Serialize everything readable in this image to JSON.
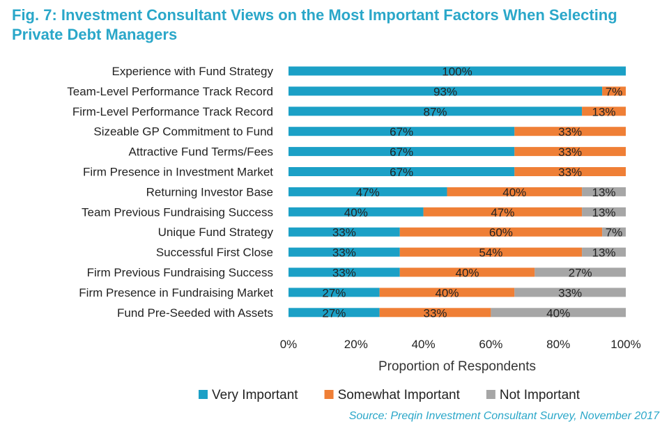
{
  "chart_data": {
    "type": "bar",
    "orientation": "horizontal",
    "stacked": true,
    "title": "Fig. 7: Investment Consultant Views on the Most Important Factors When Selecting Private Debt Managers",
    "xlabel": "Proportion of Respondents",
    "ylabel": "",
    "xlim": [
      0,
      100
    ],
    "x_ticks": [
      "0%",
      "20%",
      "40%",
      "60%",
      "80%",
      "100%"
    ],
    "categories": [
      "Experience with Fund Strategy",
      "Team-Level Performance Track Record",
      "Firm-Level Performance Track Record",
      "Sizeable GP Commitment to Fund",
      "Attractive Fund Terms/Fees",
      "Firm Presence in Investment Market",
      "Returning Investor Base",
      "Team Previous Fundraising Success",
      "Unique Fund Strategy",
      "Successful First Close",
      "Firm Previous Fundraising Success",
      "Firm Presence in Fundraising Market",
      "Fund Pre-Seeded with Assets"
    ],
    "series": [
      {
        "name": "Very Important",
        "color": "#1ba0c6",
        "values": [
          100,
          93,
          87,
          67,
          67,
          67,
          47,
          40,
          33,
          33,
          33,
          27,
          27
        ],
        "labels": [
          "100%",
          "93%",
          "87%",
          "67%",
          "67%",
          "67%",
          "47%",
          "40%",
          "33%",
          "33%",
          "33%",
          "27%",
          "27%"
        ]
      },
      {
        "name": "Somewhat Important",
        "color": "#ef7f36",
        "values": [
          0,
          7,
          13,
          33,
          33,
          33,
          40,
          47,
          60,
          54,
          40,
          40,
          33
        ],
        "labels": [
          "",
          "7%",
          "13%",
          "33%",
          "33%",
          "33%",
          "40%",
          "47%",
          "60%",
          "54%",
          "40%",
          "40%",
          "33%"
        ]
      },
      {
        "name": "Not Important",
        "color": "#a6a6a6",
        "values": [
          0,
          0,
          0,
          0,
          0,
          0,
          13,
          13,
          7,
          13,
          27,
          33,
          40
        ],
        "labels": [
          "",
          "",
          "",
          "",
          "",
          "",
          "13%",
          "13%",
          "7%",
          "13%",
          "27%",
          "33%",
          "40%"
        ]
      }
    ],
    "legend": "bottom",
    "grid": false
  },
  "source": "Source: Preqin Investment Consultant Survey, November 2017"
}
